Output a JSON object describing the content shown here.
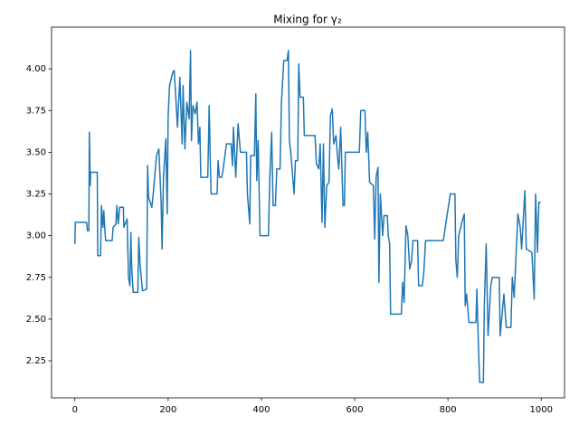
{
  "chart_data": {
    "type": "line",
    "title": "Mixing for γ₂",
    "x": [
      0,
      1,
      25,
      27,
      30,
      31,
      33,
      34,
      48,
      49,
      55,
      57,
      60,
      62,
      64,
      66,
      80,
      82,
      88,
      90,
      93,
      96,
      104,
      105,
      112,
      115,
      118,
      120,
      122,
      125,
      135,
      137,
      140,
      145,
      154,
      156,
      158,
      165,
      168,
      175,
      180,
      185,
      187,
      190,
      195,
      198,
      200,
      203,
      210,
      213,
      216,
      220,
      225,
      230,
      232,
      236,
      240,
      245,
      248,
      250,
      253,
      258,
      262,
      265,
      268,
      270,
      285,
      288,
      290,
      292,
      305,
      307,
      310,
      315,
      318,
      325,
      335,
      338,
      340,
      345,
      350,
      355,
      368,
      370,
      375,
      377,
      385,
      388,
      390,
      393,
      397,
      415,
      418,
      422,
      425,
      430,
      433,
      440,
      443,
      448,
      455,
      458,
      460,
      463,
      470,
      473,
      478,
      480,
      483,
      490,
      492,
      515,
      518,
      523,
      526,
      530,
      533,
      536,
      540,
      545,
      548,
      552,
      555,
      560,
      563,
      566,
      570,
      575,
      578,
      580,
      610,
      613,
      622,
      625,
      628,
      632,
      640,
      643,
      646,
      650,
      652,
      655,
      660,
      663,
      670,
      672,
      675,
      677,
      700,
      703,
      706,
      710,
      714,
      718,
      722,
      725,
      735,
      737,
      745,
      748,
      752,
      790,
      805,
      815,
      817,
      820,
      823,
      830,
      835,
      837,
      840,
      845,
      860,
      862,
      865,
      868,
      876,
      878,
      882,
      886,
      892,
      895,
      910,
      912,
      920,
      925,
      935,
      938,
      942,
      950,
      955,
      958,
      965,
      968,
      980,
      985,
      988,
      992,
      995,
      999
    ],
    "series": [
      {
        "color": "#1f77b4",
        "values": [
          2.95,
          3.08,
          3.08,
          3.03,
          3.03,
          3.62,
          3.3,
          3.38,
          3.38,
          2.88,
          2.88,
          3.18,
          3.05,
          3.15,
          3.05,
          2.97,
          2.97,
          3.05,
          3.07,
          3.18,
          3.07,
          3.17,
          3.17,
          3.05,
          3.1,
          2.75,
          2.7,
          3.02,
          2.8,
          2.66,
          2.66,
          2.99,
          2.82,
          2.67,
          2.68,
          3.42,
          3.23,
          3.17,
          3.25,
          3.48,
          3.52,
          3.2,
          2.92,
          3.35,
          3.58,
          3.13,
          3.72,
          3.9,
          3.98,
          3.99,
          3.85,
          3.65,
          3.95,
          3.55,
          3.9,
          3.52,
          3.8,
          3.7,
          4.11,
          3.57,
          3.78,
          3.73,
          3.8,
          3.55,
          3.65,
          3.35,
          3.35,
          3.78,
          3.5,
          3.25,
          3.25,
          3.45,
          3.35,
          3.35,
          3.4,
          3.55,
          3.55,
          3.42,
          3.65,
          3.35,
          3.67,
          3.5,
          3.5,
          3.25,
          3.07,
          3.48,
          3.48,
          3.85,
          3.33,
          3.57,
          3.0,
          3.0,
          3.35,
          3.62,
          3.18,
          3.18,
          3.4,
          3.4,
          3.8,
          4.05,
          4.05,
          4.11,
          3.57,
          3.5,
          3.25,
          3.45,
          3.45,
          4.03,
          3.83,
          3.83,
          3.6,
          3.6,
          3.43,
          3.4,
          3.55,
          3.08,
          3.55,
          3.05,
          3.3,
          3.32,
          3.72,
          3.76,
          3.55,
          3.6,
          3.48,
          3.4,
          3.65,
          3.18,
          3.18,
          3.5,
          3.5,
          3.75,
          3.75,
          3.5,
          3.62,
          3.32,
          3.3,
          2.98,
          3.35,
          3.41,
          2.72,
          3.25,
          3.0,
          3.12,
          3.12,
          3.0,
          2.95,
          2.53,
          2.53,
          2.72,
          2.6,
          3.06,
          3.0,
          2.8,
          2.85,
          2.97,
          2.97,
          2.7,
          2.7,
          2.77,
          2.97,
          2.97,
          3.25,
          3.25,
          2.85,
          2.75,
          3.0,
          3.08,
          3.13,
          2.58,
          2.65,
          2.48,
          2.48,
          2.68,
          2.38,
          2.12,
          2.12,
          2.58,
          2.95,
          2.4,
          2.7,
          2.75,
          2.75,
          2.4,
          2.65,
          2.45,
          2.45,
          2.75,
          2.63,
          3.13,
          3.05,
          2.92,
          3.27,
          2.92,
          2.9,
          2.62,
          3.25,
          2.9,
          3.2,
          3.2
        ]
      }
    ],
    "xlim": [
      -50,
      1050
    ],
    "ylim": [
      2.028,
      4.25
    ],
    "xticks": [
      0,
      200,
      400,
      600,
      800,
      1000
    ],
    "yticks": [
      2.25,
      {
        "value": 2.5,
        "label": "2.50"
      },
      2.75,
      {
        "value": 3,
        "label": "3.00"
      },
      3.25,
      {
        "value": 3.5,
        "label": "3.50"
      },
      3.75,
      {
        "value": 4,
        "label": "4.00"
      }
    ]
  }
}
